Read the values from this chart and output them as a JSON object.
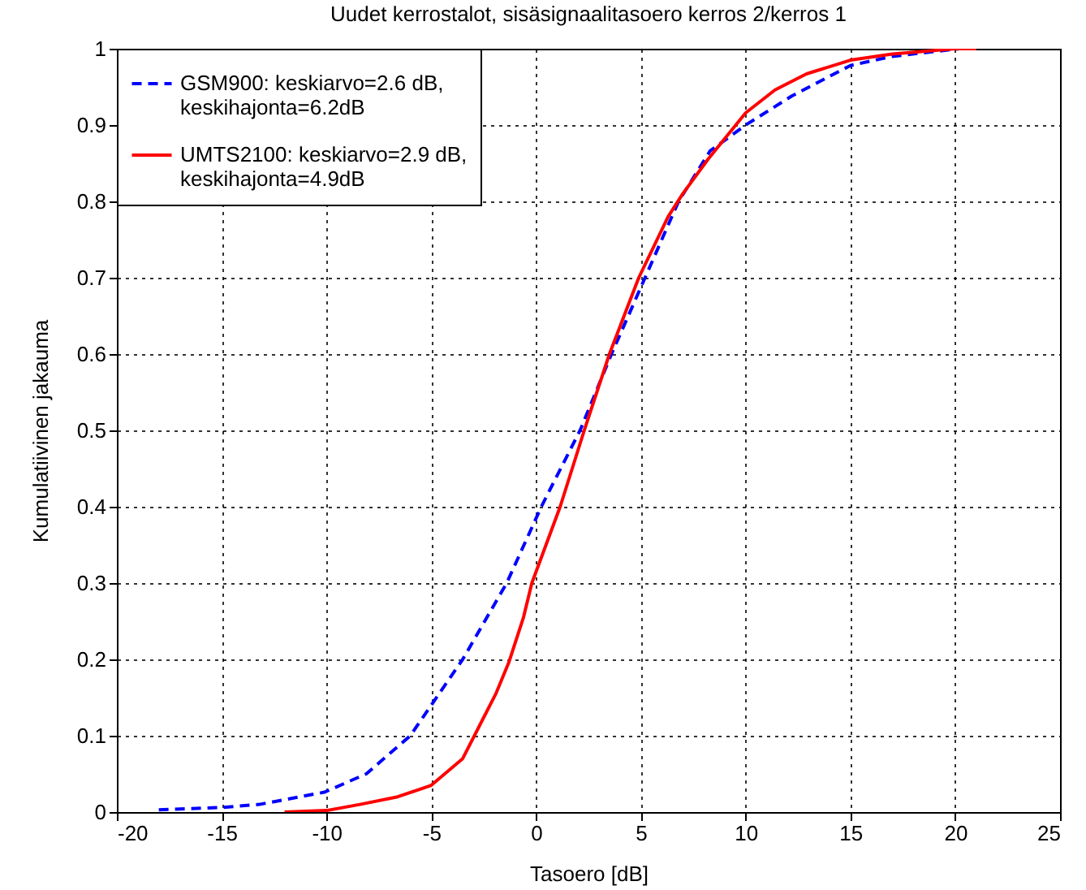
{
  "chart_data": {
    "type": "line",
    "title": "Uudet kerrostalot, sisäsignaalitasoero kerros 2/kerros 1",
    "xlabel": "Tasoero [dB]",
    "ylabel": "Kumulatiivinen jakauma",
    "xlim": [
      -20,
      25
    ],
    "xticks": [
      -20,
      -15,
      -10,
      -5,
      0,
      5,
      10,
      15,
      20,
      25
    ],
    "ylim": [
      0,
      1
    ],
    "yticks": [
      0,
      0.1,
      0.2,
      0.3,
      0.4,
      0.5,
      0.6,
      0.7,
      0.8,
      0.9,
      1
    ],
    "grid": true,
    "legend": "top left",
    "series": [
      {
        "name": "GSM900: keskiarvo=2.6 dB, keskihajonta=6.2dB",
        "color": "#0000ff",
        "line_style": "dashed",
        "x": [
          -18,
          -15,
          -13.2,
          -10.1,
          -8.1,
          -6,
          -3.5,
          -1.4,
          0.25,
          2.1,
          3.6,
          5.2,
          6.8,
          8.3,
          10,
          12.2,
          15,
          17,
          20.2
        ],
        "values": [
          0.003,
          0.006,
          0.01,
          0.026,
          0.05,
          0.1,
          0.2,
          0.3,
          0.4,
          0.5,
          0.6,
          0.7,
          0.8,
          0.866,
          0.9,
          0.938,
          0.978,
          0.99,
          1
        ]
      },
      {
        "name": "UMTS2100: keskiarvo=2.9 dB, keskihajonta=4.9dB",
        "color": "#ff0000",
        "line_style": "solid",
        "x": [
          -12,
          -10,
          -8.4,
          -6.6,
          -5,
          -3.5,
          -2.7,
          -1.9,
          -1.3,
          -0.6,
          -0.2,
          1.15,
          2.3,
          3.5,
          4.9,
          6.3,
          7,
          8.2,
          10,
          11.4,
          12.9,
          15,
          17,
          20,
          21
        ],
        "values": [
          0,
          0.002,
          0.01,
          0.02,
          0.035,
          0.07,
          0.113,
          0.156,
          0.196,
          0.255,
          0.3,
          0.4,
          0.5,
          0.6,
          0.7,
          0.78,
          0.81,
          0.855,
          0.916,
          0.946,
          0.967,
          0.985,
          0.993,
          1,
          1
        ]
      }
    ]
  }
}
